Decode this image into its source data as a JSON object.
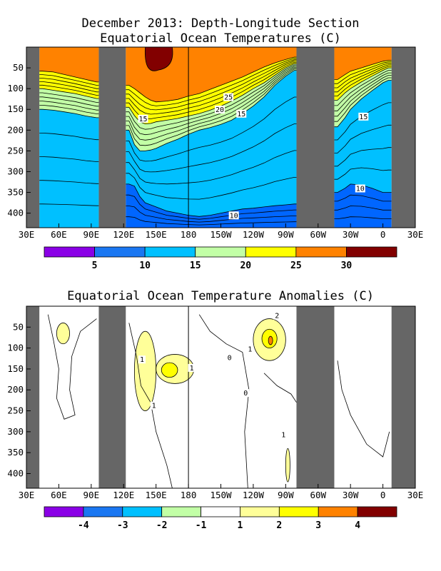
{
  "colors": {
    "land": "#666666",
    "full_palette": [
      "#8a00e6",
      "#1a77f2",
      "#00c0ff",
      "#c2ffa6",
      "#ffff00",
      "#ff8200",
      "#820000"
    ],
    "anomaly_palette": [
      "#8a00e6",
      "#1a77f2",
      "#00c0ff",
      "#c2ffa6",
      "#ffffff",
      "#ffff99",
      "#ffff00",
      "#ff8200",
      "#820000"
    ],
    "temp_bands": [
      "#0066ff",
      "#00c0ff",
      "#c2ffa6",
      "#ffff00",
      "#ff8200",
      "#820000"
    ]
  },
  "chart_data": [
    {
      "type": "heatmap",
      "title": "December 2013: Depth-Longitude Section",
      "subtitle": "Equatorial Ocean Temperatures (C)",
      "x_ticks": [
        "30E",
        "60E",
        "90E",
        "120E",
        "150E",
        "180",
        "150W",
        "120W",
        "90W",
        "60W",
        "30W",
        "0",
        "30E"
      ],
      "x_range_deg_east": [
        30,
        390
      ],
      "y_ticks": [
        "50",
        "100",
        "150",
        "200",
        "250",
        "300",
        "350",
        "400"
      ],
      "y_range_m": [
        0,
        435
      ],
      "land_masks_deg_east": [
        [
          30,
          42
        ],
        [
          97,
          122
        ],
        [
          280,
          315
        ],
        [
          368,
          390
        ]
      ],
      "colorbar_labels": [
        "5",
        "10",
        "15",
        "20",
        "25",
        "30"
      ],
      "contour_labels": [
        "25",
        "20",
        "15",
        "15",
        "15",
        "10",
        "10"
      ],
      "depth_of_isotherm_m": {
        "longitudes_deg_east": [
          45,
          55,
          65,
          75,
          85,
          95,
          125,
          130,
          135,
          140,
          145,
          150,
          160,
          170,
          180,
          190,
          200,
          210,
          220,
          230,
          240,
          250,
          260,
          270,
          278,
          318,
          325,
          330,
          340,
          350,
          360,
          365
        ],
        "isotherms": [
          {
            "level": 25,
            "depth": [
              58,
              60,
              66,
              72,
              78,
              84,
              92,
              100,
              110,
              120,
              128,
              132,
              130,
              126,
              118,
              112,
              102,
              92,
              82,
              72,
              60,
              48,
              38,
              30,
              24,
              78,
              66,
              58,
              50,
              42,
              34,
              32
            ]
          },
          {
            "level": 20,
            "depth": [
              100,
              104,
              108,
              112,
              118,
              124,
              145,
              165,
              180,
              185,
              184,
              180,
              176,
              172,
              166,
              160,
              152,
              142,
              130,
              116,
              100,
              86,
              68,
              50,
              40,
              128,
              110,
              100,
              84,
              70,
              56,
              50
            ]
          },
          {
            "level": 15,
            "depth": [
              150,
              152,
              156,
              160,
              166,
              170,
              200,
              235,
              250,
              250,
              248,
              244,
              232,
              222,
              210,
              200,
              194,
              186,
              176,
              160,
              142,
              120,
              92,
              70,
              56,
              192,
              170,
              150,
              125,
              105,
              86,
              80
            ]
          },
          {
            "level": 10,
            "depth": [
              435,
              435,
              435,
              435,
              435,
              435,
              330,
              335,
              360,
              375,
              380,
              385,
              395,
              400,
              405,
              408,
              405,
              400,
              395,
              390,
              388,
              385,
              382,
              380,
              378,
              350,
              340,
              330,
              332,
              340,
              350,
              350
            ]
          }
        ],
        "warm_pool_30C": {
          "longitudes_deg_east": [
            140,
            165
          ],
          "bottom_depth_m": 55
        }
      }
    },
    {
      "type": "heatmap",
      "title": "Equatorial Ocean Temperature Anomalies (C)",
      "x_ticks": [
        "30E",
        "60E",
        "90E",
        "120E",
        "150E",
        "180",
        "150W",
        "120W",
        "90W",
        "60W",
        "30W",
        "0",
        "30E"
      ],
      "x_range_deg_east": [
        30,
        390
      ],
      "y_ticks": [
        "50",
        "100",
        "150",
        "200",
        "250",
        "300",
        "350",
        "400"
      ],
      "y_range_m": [
        0,
        435
      ],
      "land_masks_deg_east": [
        [
          30,
          42
        ],
        [
          97,
          122
        ],
        [
          280,
          315
        ],
        [
          368,
          390
        ]
      ],
      "colorbar_labels": [
        "-4",
        "-3",
        "-2",
        "-1",
        "1",
        "2",
        "3",
        "4"
      ],
      "contour_labels": [
        "1",
        "1",
        "1",
        "1",
        "0",
        "0",
        "1",
        "2"
      ],
      "anomaly_regions": [
        {
          "level": "1 to 2",
          "lon_range_deg_east": [
            58,
            70
          ],
          "depth_range_m": [
            40,
            90
          ]
        },
        {
          "level": "1 to 2",
          "lon_range_deg_east": [
            130,
            150
          ],
          "depth_range_m": [
            60,
            250
          ]
        },
        {
          "level": "1 to 2",
          "lon_range_deg_east": [
            150,
            185
          ],
          "depth_range_m": [
            115,
            185
          ]
        },
        {
          "level": "2 to 3",
          "lon_range_deg_east": [
            155,
            170
          ],
          "depth_range_m": [
            135,
            170
          ]
        },
        {
          "level": "1 to 2",
          "lon_range_deg_east": [
            240,
            270
          ],
          "depth_range_m": [
            30,
            130
          ]
        },
        {
          "level": "2 to 3",
          "lon_range_deg_east": [
            248,
            262
          ],
          "depth_range_m": [
            55,
            100
          ]
        },
        {
          "level": "3 to 4",
          "lon_range_deg_east": [
            254,
            258
          ],
          "depth_range_m": [
            72,
            92
          ]
        },
        {
          "level": "1 to 2",
          "lon_range_deg_east": [
            270,
            274
          ],
          "depth_range_m": [
            340,
            420
          ]
        }
      ]
    }
  ]
}
